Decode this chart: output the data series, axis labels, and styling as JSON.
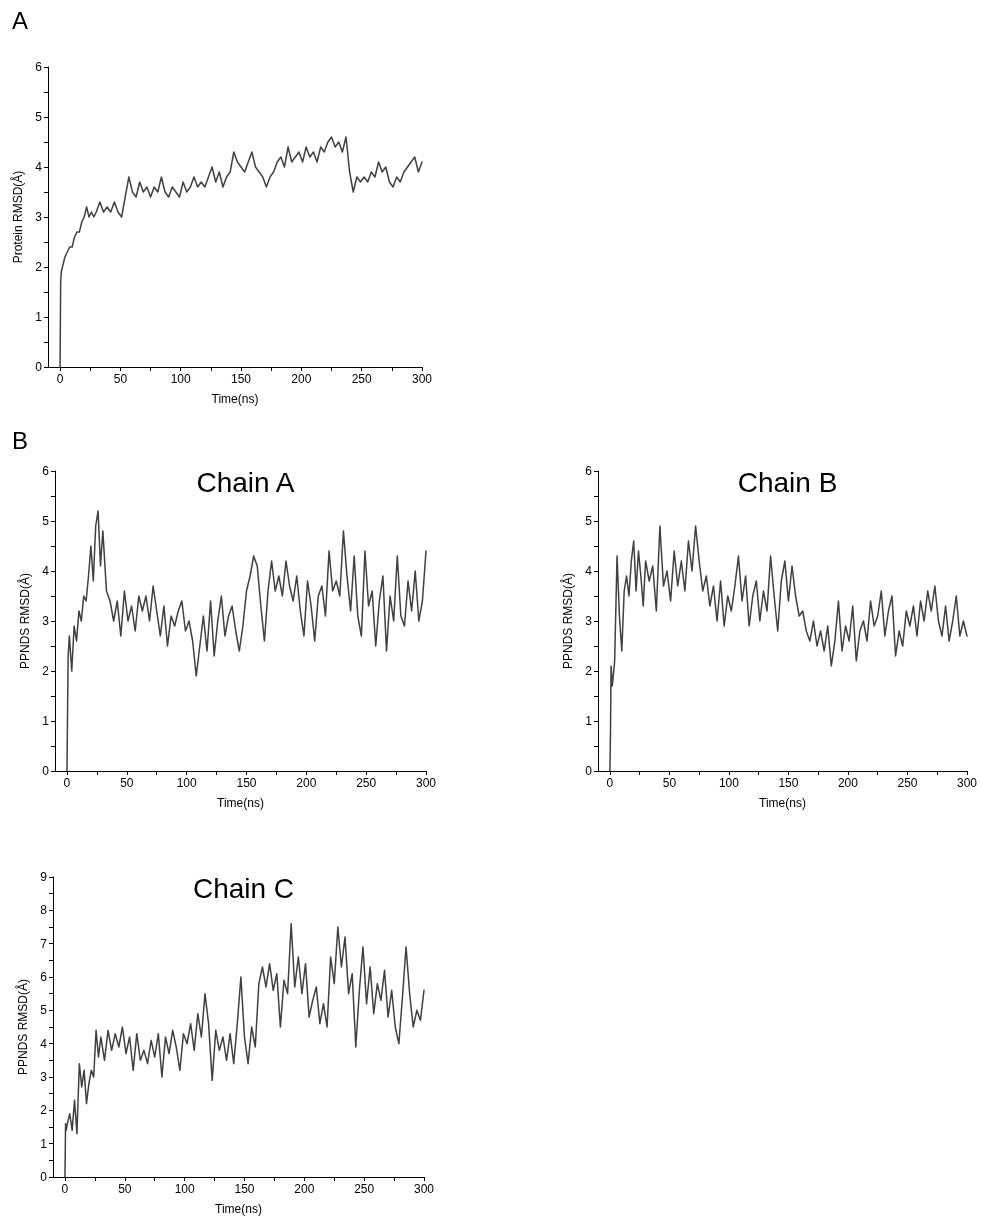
{
  "chart_data": [
    {
      "type": "line",
      "annotations": [
        "A"
      ],
      "xlabel": "Time(ns)",
      "ylabel": "Protein RMSD(Å)",
      "xlim": [
        -10,
        300
      ],
      "ylim": [
        0,
        6
      ],
      "xticks": [
        0,
        {
          "value": 25,
          "label": null
        },
        50,
        {
          "value": 75,
          "label": null
        },
        100,
        {
          "value": 125,
          "label": null
        },
        150,
        {
          "value": 175,
          "label": null
        },
        200,
        {
          "value": 225,
          "label": null
        },
        250,
        {
          "value": 275,
          "label": null
        },
        300
      ],
      "yticks": [
        0,
        {
          "value": 0.5,
          "label": null
        },
        1,
        {
          "value": 1.5,
          "label": null
        },
        2,
        {
          "value": 2.5,
          "label": null
        },
        3,
        {
          "value": 3.5,
          "label": null
        },
        4,
        {
          "value": 4.5,
          "label": null
        },
        5,
        {
          "value": 5.5,
          "label": null
        },
        6
      ],
      "grid": false,
      "marker": "none",
      "line_style": "solid",
      "x": [
        0,
        0.5,
        1,
        2,
        4,
        6,
        8,
        10,
        12,
        14,
        16,
        18,
        20,
        22,
        24,
        26,
        28,
        30,
        33,
        36,
        39,
        42,
        45,
        48,
        51,
        54,
        57,
        60,
        63,
        66,
        69,
        72,
        75,
        78,
        81,
        84,
        87,
        90,
        93,
        96,
        99,
        102,
        105,
        108,
        111,
        114,
        117,
        120,
        123,
        126,
        129,
        132,
        135,
        138,
        141,
        144,
        147,
        150,
        153,
        156,
        159,
        162,
        165,
        168,
        171,
        174,
        177,
        180,
        183,
        186,
        189,
        192,
        195,
        198,
        201,
        204,
        207,
        210,
        213,
        216,
        219,
        222,
        225,
        228,
        231,
        234,
        237,
        240,
        243,
        246,
        249,
        252,
        255,
        258,
        261,
        264,
        267,
        270,
        273,
        276,
        279,
        282,
        285,
        288,
        291,
        294,
        297,
        300
      ],
      "series": [
        {
          "color": "#404040",
          "values": [
            0,
            1.7,
            1.9,
            2.0,
            2.2,
            2.3,
            2.4,
            2.4,
            2.6,
            2.7,
            2.7,
            2.9,
            3.0,
            3.2,
            3.0,
            3.1,
            3.0,
            3.1,
            3.3,
            3.1,
            3.2,
            3.1,
            3.3,
            3.1,
            3.0,
            3.4,
            3.8,
            3.5,
            3.4,
            3.7,
            3.5,
            3.6,
            3.4,
            3.6,
            3.5,
            3.8,
            3.5,
            3.4,
            3.6,
            3.5,
            3.4,
            3.7,
            3.5,
            3.6,
            3.8,
            3.6,
            3.7,
            3.6,
            3.8,
            4.0,
            3.7,
            3.9,
            3.6,
            3.8,
            3.9,
            4.3,
            4.1,
            4.0,
            3.9,
            4.1,
            4.3,
            4.0,
            3.9,
            3.8,
            3.6,
            3.8,
            3.9,
            4.1,
            4.2,
            4.0,
            4.4,
            4.1,
            4.2,
            4.3,
            4.1,
            4.4,
            4.2,
            4.3,
            4.1,
            4.4,
            4.3,
            4.5,
            4.6,
            4.4,
            4.5,
            4.3,
            4.6,
            3.9,
            3.5,
            3.8,
            3.7,
            3.8,
            3.7,
            3.9,
            3.8,
            4.1,
            3.9,
            4.0,
            3.7,
            3.6,
            3.8,
            3.7,
            3.9,
            4.0,
            4.1,
            4.2,
            3.9,
            4.1
          ]
        }
      ]
    },
    {
      "type": "line",
      "title": "Chain A",
      "annotations": [
        "B"
      ],
      "xlabel": "Time(ns)",
      "ylabel": "PPNDS RMSD(Å)",
      "xlim": [
        -10,
        300
      ],
      "ylim": [
        0,
        6
      ],
      "xticks": [
        0,
        {
          "value": 25,
          "label": null
        },
        50,
        {
          "value": 75,
          "label": null
        },
        100,
        {
          "value": 125,
          "label": null
        },
        150,
        {
          "value": 175,
          "label": null
        },
        200,
        {
          "value": 225,
          "label": null
        },
        250,
        {
          "value": 275,
          "label": null
        },
        300
      ],
      "yticks": [
        0,
        {
          "value": 0.5,
          "label": null
        },
        1,
        {
          "value": 1.5,
          "label": null
        },
        2,
        {
          "value": 2.5,
          "label": null
        },
        3,
        {
          "value": 3.5,
          "label": null
        },
        4,
        {
          "value": 4.5,
          "label": null
        },
        5,
        {
          "value": 5.5,
          "label": null
        },
        6
      ],
      "grid": false,
      "marker": "none",
      "line_style": "solid",
      "x": [
        0,
        0.5,
        1,
        2,
        4,
        6,
        8,
        10,
        12,
        14,
        16,
        18,
        20,
        22,
        24,
        26,
        28,
        30,
        33,
        36,
        39,
        42,
        45,
        48,
        51,
        54,
        57,
        60,
        63,
        66,
        69,
        72,
        75,
        78,
        81,
        84,
        87,
        90,
        93,
        96,
        99,
        102,
        105,
        108,
        111,
        114,
        117,
        120,
        123,
        126,
        129,
        132,
        135,
        138,
        141,
        144,
        147,
        150,
        153,
        156,
        159,
        162,
        165,
        168,
        171,
        174,
        177,
        180,
        183,
        186,
        189,
        192,
        195,
        198,
        201,
        204,
        207,
        210,
        213,
        216,
        219,
        222,
        225,
        228,
        231,
        234,
        237,
        240,
        243,
        246,
        249,
        252,
        255,
        258,
        261,
        264,
        267,
        270,
        273,
        276,
        279,
        282,
        285,
        288,
        291,
        294,
        297,
        300
      ],
      "series": [
        {
          "color": "#404040",
          "values": [
            0,
            1.2,
            2.3,
            2.7,
            2.0,
            2.9,
            2.6,
            3.2,
            3.0,
            3.5,
            3.4,
            3.9,
            4.5,
            3.8,
            4.9,
            5.2,
            4.1,
            4.8,
            3.6,
            3.4,
            3.0,
            3.4,
            2.7,
            3.6,
            3.0,
            3.3,
            2.8,
            3.5,
            3.2,
            3.5,
            3.0,
            3.7,
            3.2,
            2.7,
            3.3,
            2.5,
            3.1,
            2.9,
            3.2,
            3.4,
            2.8,
            3.0,
            2.6,
            1.9,
            2.5,
            3.1,
            2.4,
            3.4,
            2.3,
            3.0,
            3.5,
            2.7,
            3.1,
            3.3,
            2.8,
            2.4,
            2.9,
            3.6,
            3.9,
            4.3,
            4.1,
            3.3,
            2.6,
            3.6,
            4.2,
            3.6,
            3.9,
            3.5,
            4.2,
            3.7,
            3.4,
            3.9,
            3.2,
            2.7,
            3.8,
            3.3,
            2.6,
            3.5,
            3.7,
            3.1,
            4.4,
            3.6,
            3.8,
            3.5,
            4.8,
            3.9,
            3.2,
            4.3,
            3.1,
            2.7,
            4.4,
            3.3,
            3.6,
            2.5,
            3.4,
            3.9,
            2.4,
            3.5,
            3.0,
            4.3,
            3.1,
            2.9,
            3.8,
            3.2,
            4.0,
            3.0,
            3.4,
            4.4
          ]
        }
      ]
    },
    {
      "type": "line",
      "title": "Chain B",
      "xlabel": "Time(ns)",
      "ylabel": "PPNDS RMSD(Å)",
      "xlim": [
        -10,
        300
      ],
      "ylim": [
        0,
        6
      ],
      "xticks": [
        0,
        {
          "value": 25,
          "label": null
        },
        50,
        {
          "value": 75,
          "label": null
        },
        100,
        {
          "value": 125,
          "label": null
        },
        150,
        {
          "value": 175,
          "label": null
        },
        200,
        {
          "value": 225,
          "label": null
        },
        250,
        {
          "value": 275,
          "label": null
        },
        300
      ],
      "yticks": [
        0,
        {
          "value": 0.5,
          "label": null
        },
        1,
        {
          "value": 1.5,
          "label": null
        },
        2,
        {
          "value": 2.5,
          "label": null
        },
        3,
        {
          "value": 3.5,
          "label": null
        },
        4,
        {
          "value": 4.5,
          "label": null
        },
        5,
        {
          "value": 5.5,
          "label": null
        },
        6
      ],
      "grid": false,
      "marker": "none",
      "line_style": "solid",
      "x": [
        0,
        0.5,
        1,
        2,
        4,
        6,
        8,
        10,
        12,
        14,
        16,
        18,
        20,
        22,
        24,
        26,
        28,
        30,
        33,
        36,
        39,
        42,
        45,
        48,
        51,
        54,
        57,
        60,
        63,
        66,
        69,
        72,
        75,
        78,
        81,
        84,
        87,
        90,
        93,
        96,
        99,
        102,
        105,
        108,
        111,
        114,
        117,
        120,
        123,
        126,
        129,
        132,
        135,
        138,
        141,
        144,
        147,
        150,
        153,
        156,
        159,
        162,
        165,
        168,
        171,
        174,
        177,
        180,
        183,
        186,
        189,
        192,
        195,
        198,
        201,
        204,
        207,
        210,
        213,
        216,
        219,
        222,
        225,
        228,
        231,
        234,
        237,
        240,
        243,
        246,
        249,
        252,
        255,
        258,
        261,
        264,
        267,
        270,
        273,
        276,
        279,
        282,
        285,
        288,
        291,
        294,
        297,
        300
      ],
      "series": [
        {
          "color": "#404040",
          "values": [
            0,
            0.8,
            2.1,
            1.7,
            2.2,
            4.3,
            3.1,
            2.4,
            3.6,
            3.9,
            3.5,
            4.2,
            4.6,
            3.6,
            4.4,
            3.9,
            3.3,
            4.2,
            3.8,
            4.1,
            3.2,
            4.9,
            3.7,
            4.0,
            3.4,
            4.4,
            3.7,
            4.2,
            3.6,
            4.6,
            4.0,
            4.9,
            4.2,
            3.6,
            3.9,
            3.3,
            3.7,
            3.0,
            3.8,
            2.9,
            3.5,
            3.2,
            3.7,
            4.3,
            3.4,
            3.9,
            2.9,
            3.5,
            3.8,
            3.0,
            3.6,
            3.2,
            4.3,
            3.5,
            2.8,
            3.8,
            4.2,
            3.4,
            4.1,
            3.5,
            3.1,
            3.2,
            2.8,
            2.6,
            3.0,
            2.5,
            2.8,
            2.4,
            2.9,
            2.1,
            2.6,
            3.4,
            2.4,
            2.9,
            2.6,
            3.3,
            2.2,
            2.8,
            3.0,
            2.6,
            3.4,
            2.9,
            3.1,
            3.6,
            2.7,
            3.2,
            3.5,
            2.3,
            2.8,
            2.5,
            3.2,
            2.9,
            3.3,
            2.7,
            3.4,
            3.0,
            3.6,
            3.2,
            3.7,
            3.0,
            2.7,
            3.3,
            2.6,
            3.0,
            3.5,
            2.7,
            3.0,
            2.7
          ]
        }
      ]
    },
    {
      "type": "line",
      "title": "Chain C",
      "xlabel": "Time(ns)",
      "ylabel": "PPNDS RMSD(Å)",
      "xlim": [
        -10,
        300
      ],
      "ylim": [
        0,
        9
      ],
      "xticks": [
        0,
        {
          "value": 25,
          "label": null
        },
        50,
        {
          "value": 75,
          "label": null
        },
        100,
        {
          "value": 125,
          "label": null
        },
        150,
        {
          "value": 175,
          "label": null
        },
        200,
        {
          "value": 225,
          "label": null
        },
        250,
        {
          "value": 275,
          "label": null
        },
        300
      ],
      "yticks": [
        0,
        {
          "value": 0.5,
          "label": null
        },
        1,
        {
          "value": 1.5,
          "label": null
        },
        2,
        {
          "value": 2.5,
          "label": null
        },
        3,
        {
          "value": 3.5,
          "label": null
        },
        4,
        {
          "value": 4.5,
          "label": null
        },
        5,
        {
          "value": 5.5,
          "label": null
        },
        6,
        {
          "value": 6.5,
          "label": null
        },
        7,
        {
          "value": 7.5,
          "label": null
        },
        8,
        {
          "value": 8.5,
          "label": null
        },
        9
      ],
      "grid": false,
      "marker": "none",
      "line_style": "solid",
      "x": [
        0,
        0.5,
        1,
        2,
        4,
        6,
        8,
        10,
        12,
        14,
        16,
        18,
        20,
        22,
        24,
        26,
        28,
        30,
        33,
        36,
        39,
        42,
        45,
        48,
        51,
        54,
        57,
        60,
        63,
        66,
        69,
        72,
        75,
        78,
        81,
        84,
        87,
        90,
        93,
        96,
        99,
        102,
        105,
        108,
        111,
        114,
        117,
        120,
        123,
        126,
        129,
        132,
        135,
        138,
        141,
        144,
        147,
        150,
        153,
        156,
        159,
        162,
        165,
        168,
        171,
        174,
        177,
        180,
        183,
        186,
        189,
        192,
        195,
        198,
        201,
        204,
        207,
        210,
        213,
        216,
        219,
        222,
        225,
        228,
        231,
        234,
        237,
        240,
        243,
        246,
        249,
        252,
        255,
        258,
        261,
        264,
        267,
        270,
        273,
        276,
        279,
        282,
        285,
        288,
        291,
        294,
        297,
        300
      ],
      "series": [
        {
          "color": "#404040",
          "values": [
            0,
            1.6,
            1.4,
            1.6,
            1.9,
            1.4,
            2.3,
            1.3,
            3.4,
            2.7,
            3.2,
            2.2,
            2.8,
            3.2,
            3.0,
            4.4,
            3.6,
            4.2,
            3.5,
            4.4,
            3.8,
            4.3,
            3.9,
            4.5,
            3.7,
            4.2,
            3.2,
            4.3,
            3.5,
            3.8,
            3.4,
            4.1,
            3.6,
            4.3,
            3.0,
            4.2,
            3.7,
            4.4,
            3.9,
            3.2,
            4.3,
            4.0,
            4.6,
            3.8,
            4.9,
            4.2,
            5.5,
            4.6,
            2.9,
            4.4,
            3.8,
            4.2,
            3.5,
            4.3,
            3.4,
            4.6,
            6.0,
            4.2,
            3.4,
            4.5,
            3.9,
            5.8,
            6.3,
            5.7,
            6.4,
            5.6,
            6.1,
            4.5,
            5.9,
            5.5,
            7.6,
            5.7,
            6.6,
            5.5,
            6.4,
            4.8,
            5.3,
            5.7,
            4.6,
            5.2,
            4.5,
            6.6,
            5.8,
            7.5,
            6.3,
            7.2,
            5.5,
            6.1,
            3.9,
            5.6,
            6.9,
            5.2,
            6.3,
            4.9,
            5.8,
            5.3,
            6.2,
            4.8,
            5.6,
            4.5,
            4.0,
            5.4,
            6.9,
            5.5,
            4.5,
            5.0,
            4.7,
            5.6
          ]
        }
      ]
    }
  ]
}
